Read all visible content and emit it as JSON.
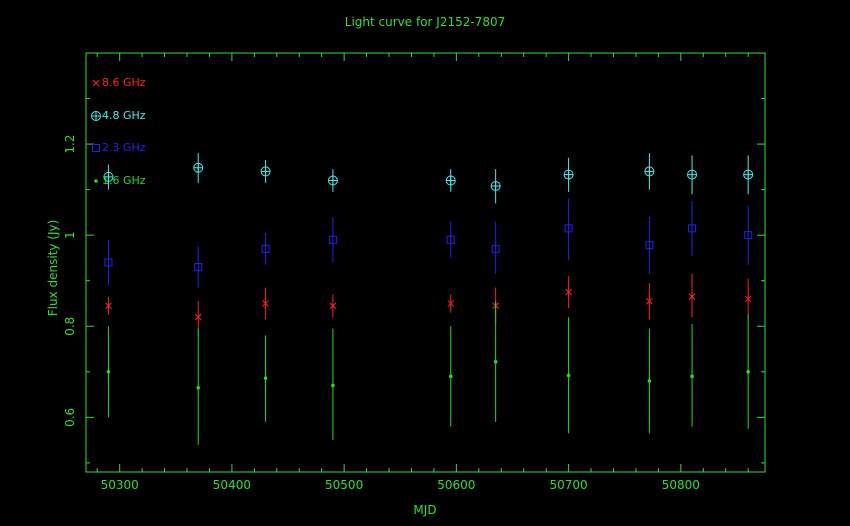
{
  "chart_data": {
    "type": "scatter",
    "title": "Light curve for J2152-7807",
    "xlabel": "MJD",
    "ylabel": "Flux density (Jy)",
    "xlim": [
      50270,
      50875
    ],
    "ylim": [
      0.48,
      1.4
    ],
    "x_ticks": [
      50300,
      50400,
      50500,
      50600,
      50700,
      50800
    ],
    "y_ticks": [
      0.6,
      0.8,
      1,
      1.2
    ],
    "y_tick_labels": [
      "0.6",
      "0.8",
      "1",
      "1.2"
    ],
    "grid": false,
    "legend_position": "top-left",
    "colors": {
      "background": "#000000",
      "axes": "#33dd33",
      "text": "#33dd33"
    },
    "series": [
      {
        "name": "8.6 GHz",
        "color": "#ff2020",
        "marker": "x",
        "points": [
          {
            "x": 50290,
            "y": 0.845,
            "lo": 0.825,
            "hi": 0.865
          },
          {
            "x": 50370,
            "y": 0.82,
            "lo": 0.785,
            "hi": 0.855
          },
          {
            "x": 50430,
            "y": 0.85,
            "lo": 0.815,
            "hi": 0.885
          },
          {
            "x": 50490,
            "y": 0.845,
            "lo": 0.82,
            "hi": 0.87
          },
          {
            "x": 50595,
            "y": 0.85,
            "lo": 0.83,
            "hi": 0.87
          },
          {
            "x": 50635,
            "y": 0.845,
            "lo": 0.805,
            "hi": 0.885
          },
          {
            "x": 50700,
            "y": 0.875,
            "lo": 0.84,
            "hi": 0.91
          },
          {
            "x": 50772,
            "y": 0.855,
            "lo": 0.815,
            "hi": 0.895
          },
          {
            "x": 50810,
            "y": 0.865,
            "lo": 0.82,
            "hi": 0.915
          },
          {
            "x": 50860,
            "y": 0.86,
            "lo": 0.815,
            "hi": 0.905
          }
        ]
      },
      {
        "name": "4.8 GHz",
        "color": "#44eeee",
        "marker": "circle-plus",
        "points": [
          {
            "x": 50290,
            "y": 1.128,
            "lo": 1.1,
            "hi": 1.155
          },
          {
            "x": 50370,
            "y": 1.148,
            "lo": 1.115,
            "hi": 1.18
          },
          {
            "x": 50430,
            "y": 1.14,
            "lo": 1.115,
            "hi": 1.165
          },
          {
            "x": 50490,
            "y": 1.12,
            "lo": 1.095,
            "hi": 1.145
          },
          {
            "x": 50595,
            "y": 1.12,
            "lo": 1.095,
            "hi": 1.145
          },
          {
            "x": 50635,
            "y": 1.108,
            "lo": 1.07,
            "hi": 1.145
          },
          {
            "x": 50700,
            "y": 1.133,
            "lo": 1.095,
            "hi": 1.17
          },
          {
            "x": 50772,
            "y": 1.14,
            "lo": 1.1,
            "hi": 1.18
          },
          {
            "x": 50810,
            "y": 1.133,
            "lo": 1.09,
            "hi": 1.175
          },
          {
            "x": 50860,
            "y": 1.133,
            "lo": 1.09,
            "hi": 1.175
          }
        ]
      },
      {
        "name": "2.3 GHz",
        "color": "#2222ee",
        "marker": "square",
        "points": [
          {
            "x": 50290,
            "y": 0.94,
            "lo": 0.89,
            "hi": 0.99
          },
          {
            "x": 50370,
            "y": 0.93,
            "lo": 0.885,
            "hi": 0.975
          },
          {
            "x": 50430,
            "y": 0.97,
            "lo": 0.935,
            "hi": 1.005
          },
          {
            "x": 50490,
            "y": 0.99,
            "lo": 0.94,
            "hi": 1.04
          },
          {
            "x": 50595,
            "y": 0.99,
            "lo": 0.95,
            "hi": 1.03
          },
          {
            "x": 50635,
            "y": 0.97,
            "lo": 0.915,
            "hi": 1.03
          },
          {
            "x": 50700,
            "y": 1.015,
            "lo": 0.945,
            "hi": 1.08
          },
          {
            "x": 50772,
            "y": 0.978,
            "lo": 0.915,
            "hi": 1.04
          },
          {
            "x": 50810,
            "y": 1.015,
            "lo": 0.955,
            "hi": 1.075
          },
          {
            "x": 50860,
            "y": 1.0,
            "lo": 0.935,
            "hi": 1.065
          }
        ]
      },
      {
        "name": "1.6 GHz",
        "color": "#22dd22",
        "marker": "dot",
        "points": [
          {
            "x": 50290,
            "y": 0.7,
            "lo": 0.6,
            "hi": 0.8
          },
          {
            "x": 50370,
            "y": 0.665,
            "lo": 0.54,
            "hi": 0.795
          },
          {
            "x": 50430,
            "y": 0.686,
            "lo": 0.59,
            "hi": 0.78
          },
          {
            "x": 50490,
            "y": 0.67,
            "lo": 0.55,
            "hi": 0.795
          },
          {
            "x": 50595,
            "y": 0.69,
            "lo": 0.58,
            "hi": 0.8
          },
          {
            "x": 50635,
            "y": 0.722,
            "lo": 0.59,
            "hi": 0.855
          },
          {
            "x": 50700,
            "y": 0.692,
            "lo": 0.565,
            "hi": 0.82
          },
          {
            "x": 50772,
            "y": 0.68,
            "lo": 0.565,
            "hi": 0.795
          },
          {
            "x": 50810,
            "y": 0.69,
            "lo": 0.58,
            "hi": 0.805
          },
          {
            "x": 50860,
            "y": 0.7,
            "lo": 0.575,
            "hi": 0.825
          }
        ]
      }
    ]
  }
}
